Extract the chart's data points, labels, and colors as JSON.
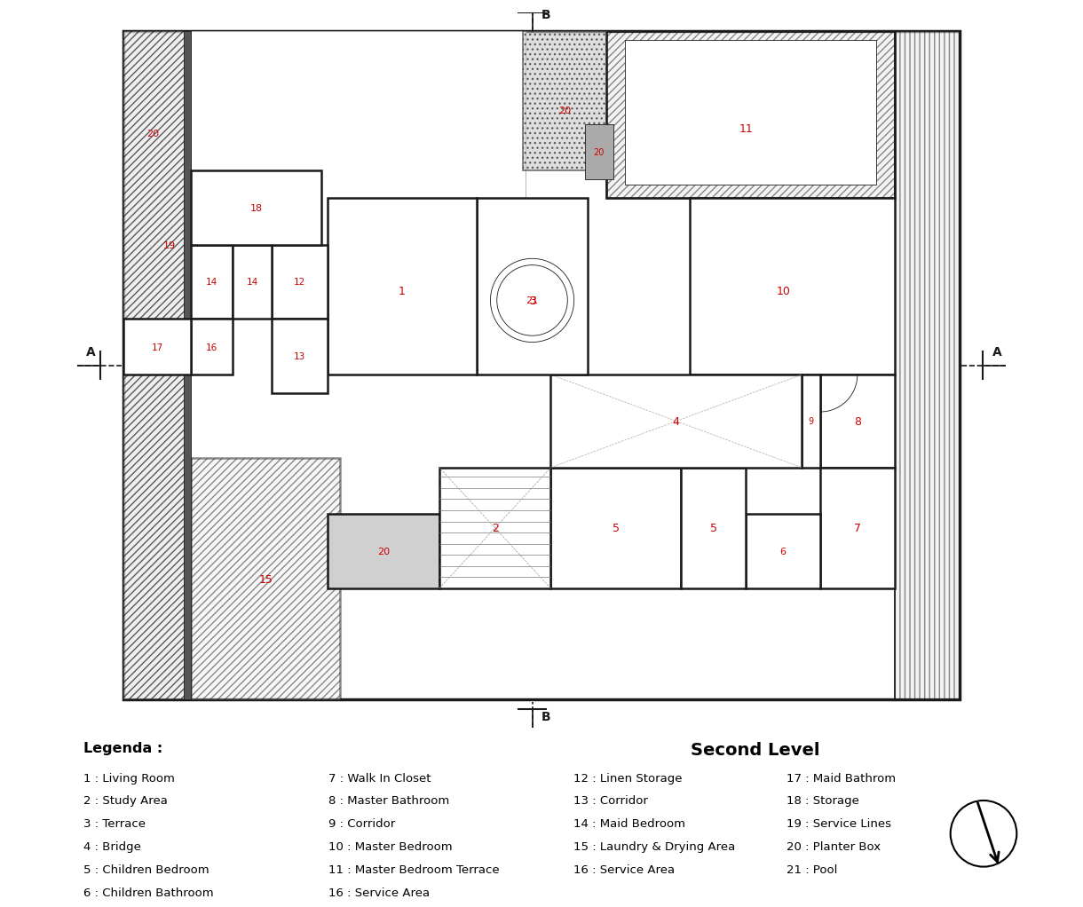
{
  "bg_color": "#ffffff",
  "wall_color": "#1a1a1a",
  "label_color": "#cc0000",
  "gray_fill": "#e0e0e0",
  "light_gray": "#f0f0f0",
  "title": "Second Level",
  "legenda_title": "Legenda :",
  "legend_cols": [
    [
      "1 : Living Room",
      "2 : Study Area",
      "3 : Terrace",
      "4 : Bridge",
      "5 : Children Bedroom",
      "6 : Children Bathroom"
    ],
    [
      "7 : Walk In Closet",
      "8 : Master Bathroom",
      "9 : Corridor",
      "10 : Master Bedroom",
      "11 : Master Bedroom Terrace",
      "16 : Service Area"
    ],
    [
      "12 : Linen Storage",
      "13 : Corridor",
      "14 : Maid Bedroom",
      "15 : Laundry & Drying Area",
      "16 : Service Area"
    ],
    [
      "17 : Maid Bathrom",
      "18 : Storage",
      "19 : Service Lines",
      "20 : Planter Box",
      "21 : Pool"
    ]
  ]
}
